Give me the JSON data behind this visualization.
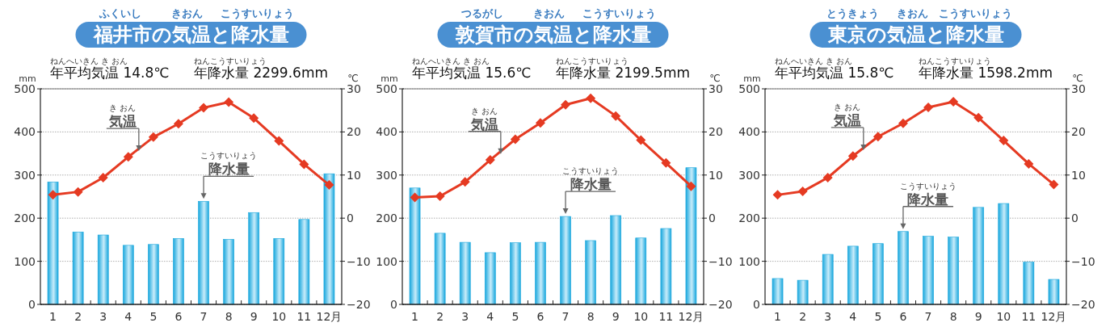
{
  "chart_data": [
    {
      "type": "bar",
      "title": "福井市の気温と降水量",
      "ylabel": "mm",
      "y2label": "℃",
      "categories": [
        "1",
        "2",
        "3",
        "4",
        "5",
        "6",
        "7",
        "8",
        "9",
        "10",
        "11",
        "12月"
      ],
      "ylim": [
        0,
        500
      ],
      "yticks": [
        0,
        100,
        200,
        300,
        400,
        500
      ],
      "y2lim": [
        -20,
        30
      ],
      "y2ticks": [
        -20,
        -10,
        0,
        10,
        20,
        30
      ],
      "grid": "y",
      "marker": "diamond",
      "series": [
        {
          "type": "bar",
          "color": "#19a7dd",
          "values": [
            284,
            168,
            161,
            137,
            139,
            153,
            239,
            151,
            213,
            153,
            197,
            303
          ]
        },
        {
          "type": "line",
          "axis": "y2",
          "color": "#e53a22",
          "values": [
            5.4,
            6.1,
            9.4,
            14.2,
            18.8,
            21.9,
            25.6,
            26.9,
            23.2,
            17.9,
            12.5,
            7.7
          ]
        }
      ],
      "annotations": [
        "ふくいし",
        "きおん",
        "こうすいりょう",
        "年平均気温 14.8℃",
        "ねんへいきん き おん",
        "年降水量 2299.6mm",
        "ねんこうすいりょう",
        {
          "text": "気温",
          "x": "4",
          "y": 352
        },
        "き おん",
        {
          "text": "降水量",
          "x": "7",
          "y": 239
        },
        "こうすいりょう"
      ]
    },
    {
      "type": "bar",
      "title": "敦賀市の気温と降水量",
      "ylabel": "mm",
      "y2label": "℃",
      "categories": [
        "1",
        "2",
        "3",
        "4",
        "5",
        "6",
        "7",
        "8",
        "9",
        "10",
        "11",
        "12月"
      ],
      "ylim": [
        0,
        500
      ],
      "yticks": [
        0,
        100,
        200,
        300,
        400,
        500
      ],
      "y2lim": [
        -20,
        30
      ],
      "y2ticks": [
        -20,
        -10,
        0,
        10,
        20,
        30
      ],
      "grid": "y",
      "marker": "diamond",
      "series": [
        {
          "type": "bar",
          "color": "#19a7dd",
          "values": [
            270,
            165,
            144,
            120,
            143,
            144,
            204,
            148,
            206,
            154,
            176,
            317
          ]
        },
        {
          "type": "line",
          "axis": "y2",
          "color": "#e53a22",
          "values": [
            4.8,
            5.1,
            8.4,
            13.5,
            18.3,
            22.1,
            26.3,
            27.8,
            23.7,
            18.1,
            12.8,
            7.4
          ]
        }
      ],
      "annotations": [
        "つるがし",
        "きおん",
        "こうすいりょう",
        "年平均気温 15.6℃",
        "ねんへいきん き おん",
        "年降水量 2199.5mm",
        "ねんこうすいりょう",
        {
          "text": "気温",
          "x": "4",
          "y": 345
        },
        "き おん",
        {
          "text": "降水量",
          "x": "7",
          "y": 204
        },
        "こうすいりょう"
      ]
    },
    {
      "type": "bar",
      "title": "東京の気温と降水量",
      "ylabel": "mm",
      "y2label": "℃",
      "categories": [
        "1",
        "2",
        "3",
        "4",
        "5",
        "6",
        "7",
        "8",
        "9",
        "10",
        "11",
        "12月"
      ],
      "ylim": [
        0,
        500
      ],
      "yticks": [
        0,
        100,
        200,
        300,
        400,
        500
      ],
      "y2lim": [
        -20,
        30
      ],
      "y2ticks": [
        -20,
        -10,
        0,
        10,
        20,
        30
      ],
      "grid": "y",
      "marker": "diamond",
      "series": [
        {
          "type": "bar",
          "color": "#19a7dd",
          "values": [
            60,
            56,
            116,
            135,
            141,
            169,
            158,
            156,
            225,
            234,
            98,
            58
          ]
        },
        {
          "type": "line",
          "axis": "y2",
          "color": "#e53a22",
          "values": [
            5.4,
            6.2,
            9.4,
            14.4,
            18.9,
            22.0,
            25.7,
            27.0,
            23.3,
            18.0,
            12.6,
            7.8
          ]
        }
      ],
      "annotations": [
        "とうきょう",
        "きおん",
        "こうすいりょう",
        "年平均気温 15.8℃",
        "ねんへいきん き おん",
        "年降水量 1598.2mm",
        "ねんこうすいりょう",
        {
          "text": "気温",
          "x": "4",
          "y": 354
        },
        "き おん",
        {
          "text": "降水量",
          "x": "6",
          "y": 169
        },
        "こうすいりょう"
      ]
    }
  ]
}
